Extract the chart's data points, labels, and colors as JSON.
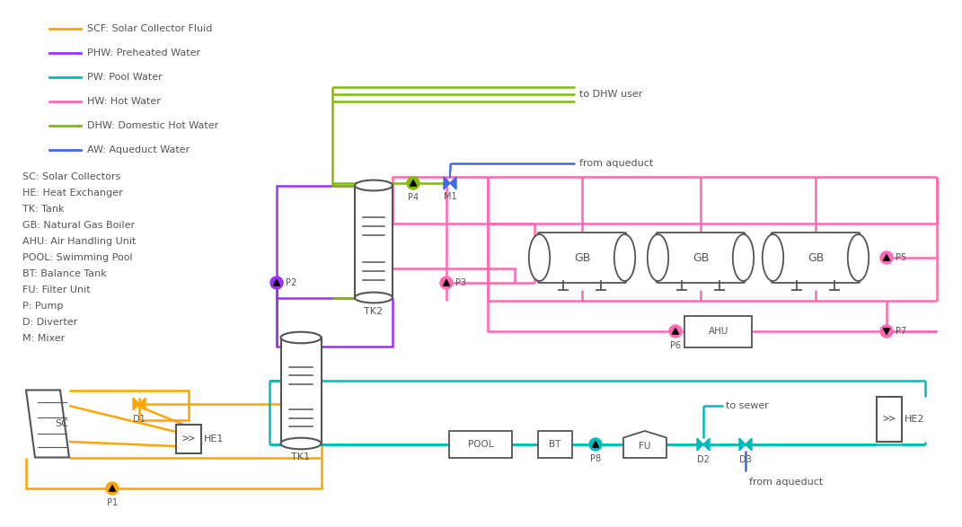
{
  "colors": {
    "SCF": "#FFA500",
    "PHW": "#9B30FF",
    "PW": "#00BBBB",
    "HW": "#FF69B4",
    "DHW": "#7FBF00",
    "AW": "#4169E1",
    "EQ": "#555555",
    "text": "#555555",
    "bg": "#FFFFFF"
  },
  "legend_lines": [
    {
      "color": "#FFA500",
      "label": "SCF: Solar Collector Fluid"
    },
    {
      "color": "#9B30FF",
      "label": "PHW: Preheated Water"
    },
    {
      "color": "#00BBBB",
      "label": "PW: Pool Water"
    },
    {
      "color": "#FF69B4",
      "label": "HW: Hot Water"
    },
    {
      "color": "#7FBF00",
      "label": "DHW: Domestic Hot Water"
    },
    {
      "color": "#4169E1",
      "label": "AW: Aqueduct Water"
    }
  ],
  "legend_text": [
    "SC: Solar Collectors",
    "HE: Heat Exchanger",
    "TK: Tank",
    "GB: Natural Gas Boiler",
    "AHU: Air Handling Unit",
    "POOL: Swimming Pool",
    "BT: Balance Tank",
    "FU: Filter Unit",
    "P: Pump",
    "D: Diverter",
    "M: Mixer"
  ]
}
